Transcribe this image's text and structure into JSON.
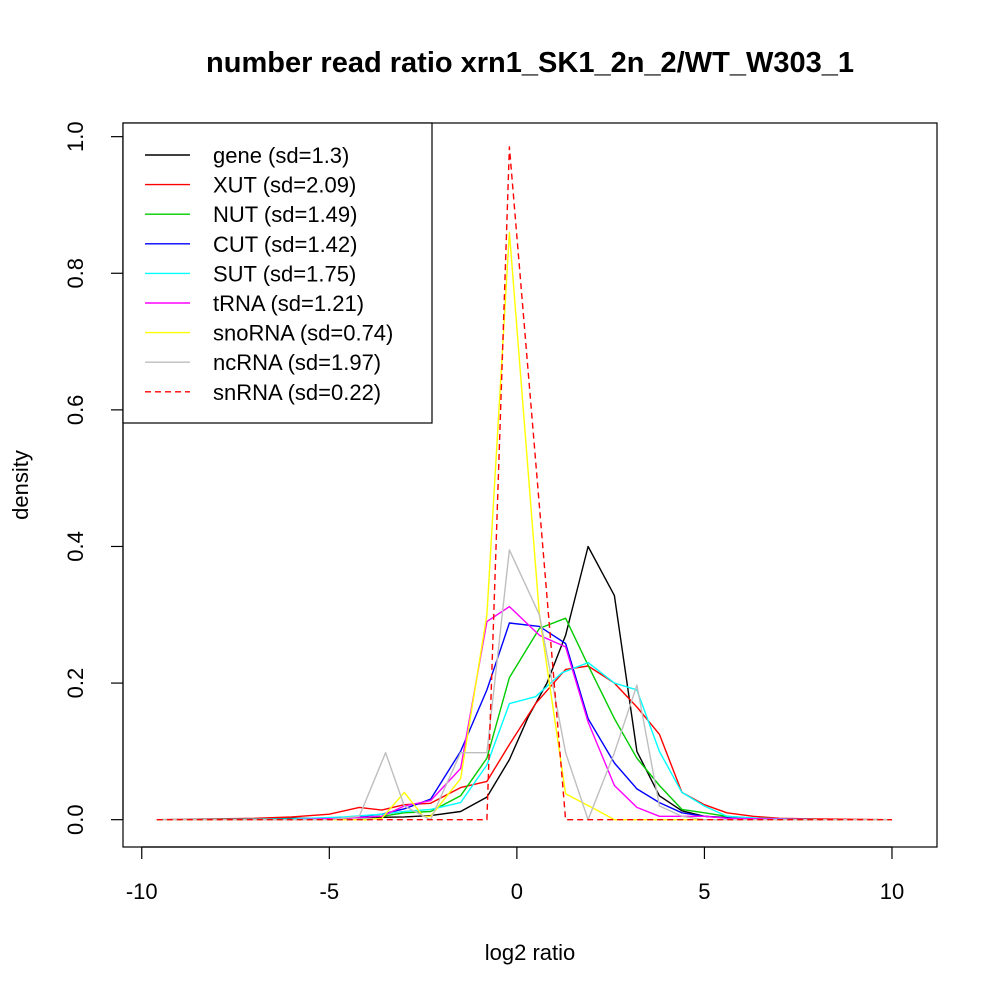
{
  "chart_data": {
    "type": "line",
    "title": "number read ratio xrn1_SK1_2n_2/WT_W303_1",
    "xlabel": "log2 ratio",
    "ylabel": "density",
    "xlim": [
      -10.5,
      11.2
    ],
    "ylim": [
      -0.04,
      1.02
    ],
    "xticks": [
      -10,
      -5,
      0,
      5,
      10
    ],
    "xtick_labels": [
      "-10",
      "-5",
      "0",
      "5",
      "10"
    ],
    "yticks": [
      0,
      0.2,
      0.4,
      0.6,
      0.8,
      1.0
    ],
    "ytick_labels": [
      "0.0",
      "0.2",
      "0.4",
      "0.6",
      "0.8",
      "1.0"
    ],
    "grid": false,
    "legend_position": "top-left",
    "series": [
      {
        "name": "gene (sd=1.3)",
        "color": "#000000",
        "dash": false,
        "points": [
          [
            -9.6,
            0
          ],
          [
            -8,
            0
          ],
          [
            -7,
            0.001
          ],
          [
            -6,
            0.002
          ],
          [
            -5,
            0.002
          ],
          [
            -4,
            0.003
          ],
          [
            -3,
            0.004
          ],
          [
            -2.3,
            0.006
          ],
          [
            -1.5,
            0.012
          ],
          [
            -0.8,
            0.033
          ],
          [
            -0.2,
            0.088
          ],
          [
            0.3,
            0.15
          ],
          [
            0.8,
            0.2
          ],
          [
            1.3,
            0.27
          ],
          [
            1.9,
            0.4
          ],
          [
            2.6,
            0.328
          ],
          [
            3.2,
            0.1
          ],
          [
            3.8,
            0.035
          ],
          [
            4.4,
            0.013
          ],
          [
            5,
            0.005
          ],
          [
            6,
            0.002
          ],
          [
            7,
            0.001
          ],
          [
            8,
            0
          ],
          [
            10,
            0
          ]
        ]
      },
      {
        "name": "XUT (sd=2.09)",
        "color": "#ff0000",
        "dash": false,
        "points": [
          [
            -9.6,
            0
          ],
          [
            -7,
            0.002
          ],
          [
            -6,
            0.004
          ],
          [
            -5,
            0.008
          ],
          [
            -4.2,
            0.018
          ],
          [
            -3.6,
            0.014
          ],
          [
            -3,
            0.022
          ],
          [
            -2.3,
            0.024
          ],
          [
            -1.5,
            0.047
          ],
          [
            -0.8,
            0.056
          ],
          [
            -0.2,
            0.11
          ],
          [
            0.5,
            0.17
          ],
          [
            1.3,
            0.22
          ],
          [
            1.9,
            0.225
          ],
          [
            2.6,
            0.2
          ],
          [
            3.2,
            0.165
          ],
          [
            3.8,
            0.125
          ],
          [
            4.4,
            0.04
          ],
          [
            5,
            0.022
          ],
          [
            5.6,
            0.01
          ],
          [
            6.3,
            0.005
          ],
          [
            7,
            0.002
          ],
          [
            8,
            0.001
          ],
          [
            10,
            0
          ]
        ]
      },
      {
        "name": "NUT (sd=1.49)",
        "color": "#00cc00",
        "dash": false,
        "points": [
          [
            -9.6,
            0
          ],
          [
            -6,
            0
          ],
          [
            -4.6,
            0.002
          ],
          [
            -3.6,
            0.005
          ],
          [
            -3,
            0.01
          ],
          [
            -2.3,
            0.012
          ],
          [
            -1.5,
            0.035
          ],
          [
            -0.8,
            0.09
          ],
          [
            -0.2,
            0.208
          ],
          [
            0.6,
            0.28
          ],
          [
            1.3,
            0.295
          ],
          [
            1.9,
            0.226
          ],
          [
            2.6,
            0.148
          ],
          [
            3.2,
            0.09
          ],
          [
            3.8,
            0.05
          ],
          [
            4.4,
            0.015
          ],
          [
            5,
            0.01
          ],
          [
            5.6,
            0.005
          ],
          [
            6.3,
            0.002
          ],
          [
            8,
            0
          ],
          [
            10,
            0
          ]
        ]
      },
      {
        "name": "CUT (sd=1.42)",
        "color": "#0000ff",
        "dash": false,
        "points": [
          [
            -9.6,
            0
          ],
          [
            -6,
            0
          ],
          [
            -4.6,
            0.002
          ],
          [
            -3.6,
            0.008
          ],
          [
            -3,
            0.016
          ],
          [
            -2.3,
            0.03
          ],
          [
            -1.5,
            0.1
          ],
          [
            -0.8,
            0.19
          ],
          [
            -0.2,
            0.288
          ],
          [
            0.6,
            0.283
          ],
          [
            1.3,
            0.258
          ],
          [
            1.9,
            0.148
          ],
          [
            2.6,
            0.083
          ],
          [
            3.2,
            0.045
          ],
          [
            3.8,
            0.025
          ],
          [
            4.4,
            0.01
          ],
          [
            5,
            0.005
          ],
          [
            6,
            0.001
          ],
          [
            8,
            0
          ],
          [
            10,
            0
          ]
        ]
      },
      {
        "name": "SUT (sd=1.75)",
        "color": "#00ffff",
        "dash": false,
        "points": [
          [
            -9.6,
            0
          ],
          [
            -6,
            0.001
          ],
          [
            -4.6,
            0.004
          ],
          [
            -3.6,
            0.008
          ],
          [
            -3,
            0.012
          ],
          [
            -2.3,
            0.015
          ],
          [
            -1.5,
            0.025
          ],
          [
            -0.8,
            0.08
          ],
          [
            -0.2,
            0.17
          ],
          [
            0.5,
            0.18
          ],
          [
            1.2,
            0.215
          ],
          [
            1.9,
            0.23
          ],
          [
            2.6,
            0.2
          ],
          [
            3.2,
            0.19
          ],
          [
            3.8,
            0.1
          ],
          [
            4.4,
            0.04
          ],
          [
            5,
            0.02
          ],
          [
            5.6,
            0.005
          ],
          [
            6.5,
            0.002
          ],
          [
            8,
            0
          ],
          [
            10,
            0
          ]
        ]
      },
      {
        "name": "tRNA (sd=1.21)",
        "color": "#ff00ff",
        "dash": false,
        "points": [
          [
            -9.6,
            0
          ],
          [
            -6,
            0
          ],
          [
            -4.6,
            0.002
          ],
          [
            -3.6,
            0.005
          ],
          [
            -3,
            0.02
          ],
          [
            -2.3,
            0.028
          ],
          [
            -1.5,
            0.075
          ],
          [
            -0.8,
            0.29
          ],
          [
            -0.2,
            0.312
          ],
          [
            0.6,
            0.27
          ],
          [
            1.3,
            0.253
          ],
          [
            1.9,
            0.143
          ],
          [
            2.6,
            0.05
          ],
          [
            3.2,
            0.018
          ],
          [
            3.8,
            0.005
          ],
          [
            4.4,
            0.005
          ],
          [
            5,
            0.005
          ],
          [
            5.6,
            0.002
          ],
          [
            8,
            0
          ],
          [
            10,
            0
          ]
        ]
      },
      {
        "name": "snoRNA (sd=0.74)",
        "color": "#ffff00",
        "dash": false,
        "points": [
          [
            -9.6,
            0
          ],
          [
            -4,
            0
          ],
          [
            -3.6,
            0.002
          ],
          [
            -3,
            0.04
          ],
          [
            -2.5,
            0.005
          ],
          [
            -2.3,
            0.005
          ],
          [
            -1.5,
            0.06
          ],
          [
            -0.8,
            0.3
          ],
          [
            -0.2,
            0.86
          ],
          [
            0.6,
            0.3
          ],
          [
            1.3,
            0.038
          ],
          [
            2.2,
            0.012
          ],
          [
            2.6,
            0
          ],
          [
            4,
            0
          ],
          [
            10,
            0
          ]
        ]
      },
      {
        "name": "ncRNA (sd=1.97)",
        "color": "#bebebe",
        "dash": false,
        "points": [
          [
            -9.6,
            0
          ],
          [
            -5,
            0
          ],
          [
            -4.2,
            0.005
          ],
          [
            -3.5,
            0.098
          ],
          [
            -3,
            0.02
          ],
          [
            -2.3,
            0
          ],
          [
            -1.5,
            0.098
          ],
          [
            -0.8,
            0.098
          ],
          [
            -0.2,
            0.395
          ],
          [
            0.6,
            0.3
          ],
          [
            1.3,
            0.098
          ],
          [
            1.9,
            0
          ],
          [
            2.6,
            0.098
          ],
          [
            3.2,
            0.197
          ],
          [
            3.8,
            0.02
          ],
          [
            4.4,
            0.005
          ],
          [
            5,
            0
          ],
          [
            10,
            0
          ]
        ]
      },
      {
        "name": "snRNA (sd=0.22)",
        "color": "#ff0000",
        "dash": true,
        "points": [
          [
            -9.6,
            0
          ],
          [
            -0.8,
            0
          ],
          [
            -0.2,
            0.985
          ],
          [
            1.3,
            0
          ],
          [
            10,
            0
          ]
        ]
      }
    ]
  }
}
